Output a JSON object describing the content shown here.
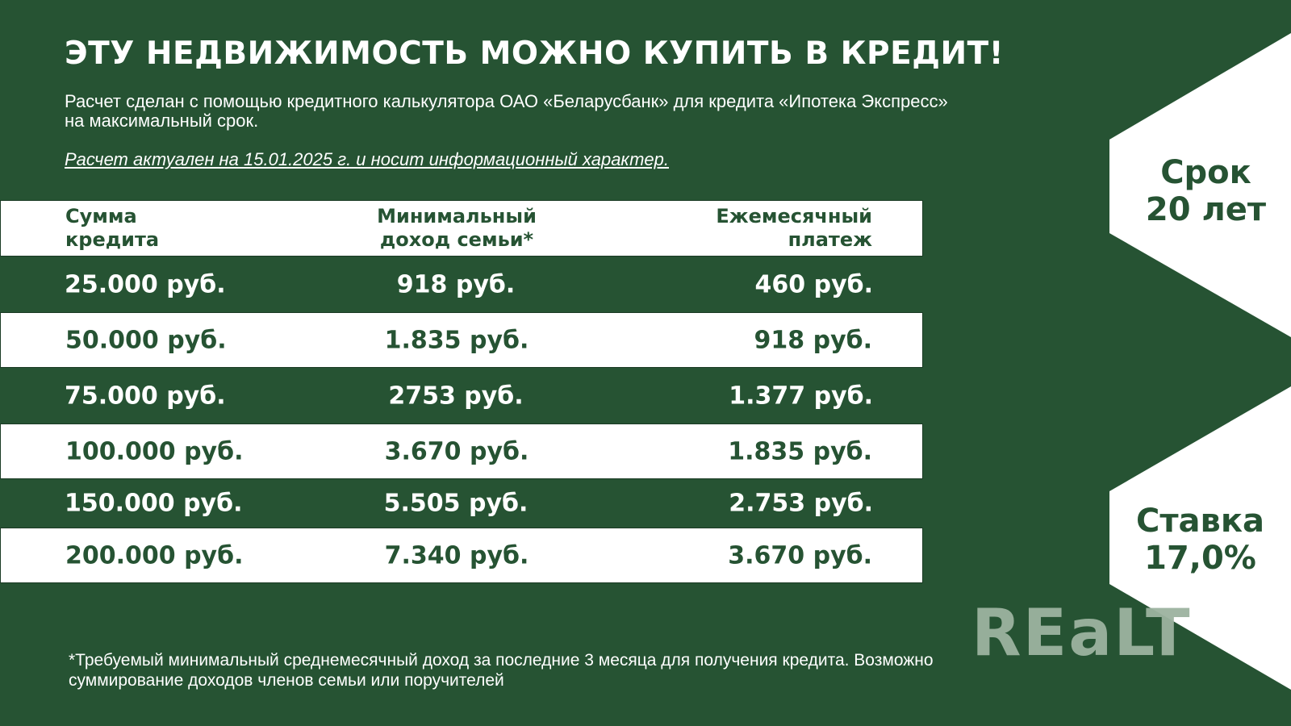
{
  "title": "ЭТУ НЕДВИЖИМОСТЬ МОЖНО КУПИТЬ В КРЕДИТ!",
  "subtitle": "Расчет сделан с помощью кредитного калькулятора ОАО «Беларусбанк» для кредита «Ипотека Экспресс» на максимальный срок.",
  "note": "Расчет актуален на 15.01.2025 г. и носит информационный характер.",
  "table": {
    "headers": [
      "Сумма\nкредита",
      "Минимальный\nдоход семьи*",
      "Ежемесячный\nплатеж"
    ],
    "rows": [
      [
        "25.000 руб.",
        "918 руб.",
        "460 руб."
      ],
      [
        "50.000 руб.",
        "1.835 руб.",
        "918 руб."
      ],
      [
        "75.000 руб.",
        "2753 руб.",
        "1.377 руб."
      ],
      [
        "100.000 руб.",
        "3.670 руб.",
        "1.835 руб."
      ],
      [
        "150.000 руб.",
        "5.505 руб.",
        "2.753 руб."
      ],
      [
        "200.000 руб.",
        "7.340 руб.",
        "3.670 руб."
      ]
    ]
  },
  "badges": {
    "term": "Срок\n20 лет",
    "rate": "Ставка\n17,0%"
  },
  "logo": "REaLT",
  "footnote": "*Требуемый минимальный среднемесячный доход за последние 3 месяца для получения кредита. Возможно суммирование доходов членов семьи или поручителей",
  "colors": {
    "background": "#265333",
    "panel": "#ffffff",
    "logo": "#9db3a0"
  }
}
